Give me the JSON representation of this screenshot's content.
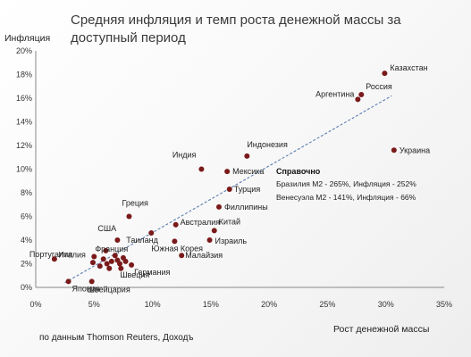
{
  "chart_data": {
    "type": "scatter",
    "title_lines": [
      "Средняя инфляция и темп роста денежной массы за",
      "доступный период"
    ],
    "ylabel": "Инфляция",
    "xlabel": "Рост денежной массы",
    "xlim": [
      0,
      35
    ],
    "ylim": [
      0,
      20
    ],
    "x_ticks": [
      0,
      5,
      10,
      15,
      20,
      25,
      30,
      35
    ],
    "y_ticks": [
      0,
      2,
      4,
      6,
      8,
      10,
      12,
      14,
      16,
      18,
      20
    ],
    "x_tick_labels": [
      "0%",
      "5%",
      "10%",
      "15%",
      "20%",
      "25%",
      "30%",
      "35%"
    ],
    "y_tick_labels": [
      "0%",
      "2%",
      "4%",
      "6%",
      "8%",
      "10%",
      "12%",
      "14%",
      "16%",
      "18%",
      "20%"
    ],
    "grid": false,
    "trendline": {
      "style": "dashed",
      "color": "#5b7fb0",
      "from": [
        2.5,
        0.4
      ],
      "to": [
        30.5,
        16.2
      ]
    },
    "point_color": "#7a1a1a",
    "points": [
      {
        "label": "Казахстан",
        "x": 29.9,
        "y": 18.1
      },
      {
        "label": "Россия",
        "x": 27.9,
        "y": 16.3
      },
      {
        "label": "Аргентина",
        "x": 27.6,
        "y": 15.9
      },
      {
        "label": "Украина",
        "x": 30.7,
        "y": 11.6
      },
      {
        "label": "Индонезия",
        "x": 18.1,
        "y": 11.1
      },
      {
        "label": "Индия",
        "x": 14.2,
        "y": 10.0
      },
      {
        "label": "Мексика",
        "x": 16.4,
        "y": 9.8
      },
      {
        "label": "Турция",
        "x": 16.6,
        "y": 8.3
      },
      {
        "label": "Филлипины",
        "x": 15.7,
        "y": 6.8
      },
      {
        "label": "Греция",
        "x": 8.0,
        "y": 6.0
      },
      {
        "label": "Австралия",
        "x": 12.0,
        "y": 5.3
      },
      {
        "label": "Китай",
        "x": 15.3,
        "y": 4.8
      },
      {
        "label": "США",
        "x": 7.0,
        "y": 4.0
      },
      {
        "label": "Таиланд",
        "x": 9.9,
        "y": 4.6
      },
      {
        "label": "Израиль",
        "x": 14.9,
        "y": 4.0
      },
      {
        "label": "Южная Корея",
        "x": 11.9,
        "y": 3.9
      },
      {
        "label": "Франция",
        "x": 6.0,
        "y": 3.1
      },
      {
        "label": "Италия",
        "x": 5.0,
        "y": 2.6
      },
      {
        "label": "Малайзия",
        "x": 12.5,
        "y": 2.7
      },
      {
        "label": "Португалия",
        "x": 1.6,
        "y": 2.4
      },
      {
        "label": "Германия",
        "x": 8.2,
        "y": 1.9
      },
      {
        "label": "Швеция",
        "x": 7.3,
        "y": 1.6
      },
      {
        "label": "Япония",
        "x": 2.8,
        "y": 0.5
      },
      {
        "label": "Швейцария",
        "x": 4.8,
        "y": 0.5
      },
      {
        "label": "",
        "x": 4.9,
        "y": 2.1
      },
      {
        "label": "",
        "x": 5.5,
        "y": 1.8
      },
      {
        "label": "",
        "x": 5.8,
        "y": 2.4
      },
      {
        "label": "",
        "x": 6.1,
        "y": 2.0
      },
      {
        "label": "",
        "x": 6.5,
        "y": 2.2
      },
      {
        "label": "",
        "x": 6.8,
        "y": 2.7
      },
      {
        "label": "",
        "x": 7.0,
        "y": 2.3
      },
      {
        "label": "",
        "x": 7.2,
        "y": 2.0
      },
      {
        "label": "",
        "x": 7.5,
        "y": 2.5
      },
      {
        "label": "",
        "x": 7.7,
        "y": 2.2
      },
      {
        "label": "",
        "x": 6.3,
        "y": 1.6
      }
    ],
    "annotation": {
      "heading": "Справочно",
      "lines": [
        "Бразилия М2 - 265%, Инфляция - 252%",
        "Венесуэла М2 - 141%, Инфляция - 66%"
      ]
    },
    "source": "по данным Thomson Reuters, Доходъ"
  }
}
